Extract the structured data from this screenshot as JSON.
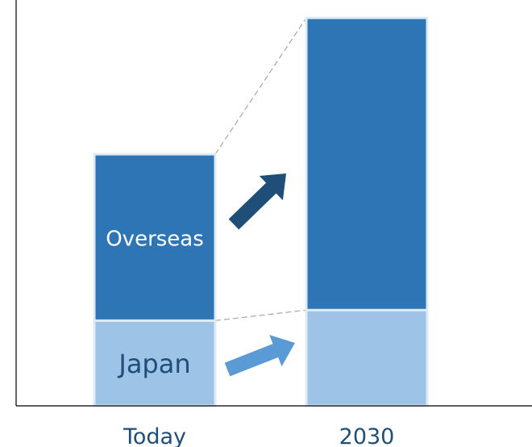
{
  "chart_data": {
    "type": "bar",
    "stacked": true,
    "categories": [
      "Today",
      "2030"
    ],
    "series": [
      {
        "name": "Japan",
        "values": [
          105,
          118
        ],
        "color": "#9dc3e6"
      },
      {
        "name": "Overseas",
        "values": [
          205,
          360
        ],
        "color": "#2e75b6"
      }
    ],
    "segment_labels": {
      "Today": {
        "Japan": "Japan",
        "Overseas": "Overseas"
      }
    },
    "ylim": [
      0,
      500
    ],
    "xlabel": "",
    "ylabel": "",
    "grid": false,
    "legend": "none",
    "connector_lines": "dashed, between bar tops and between segment boundaries",
    "growth_arrows": [
      {
        "series": "Overseas",
        "color": "#1f4e79"
      },
      {
        "series": "Japan",
        "color": "#5b9bd5"
      }
    ],
    "colors": {
      "axis": "#000000",
      "bar_border": "#deebf7",
      "label_japan": "#1f4e79",
      "label_overseas": "#ffffff",
      "tick_label": "#1f4e79",
      "connector": "#a6a6a6"
    }
  }
}
